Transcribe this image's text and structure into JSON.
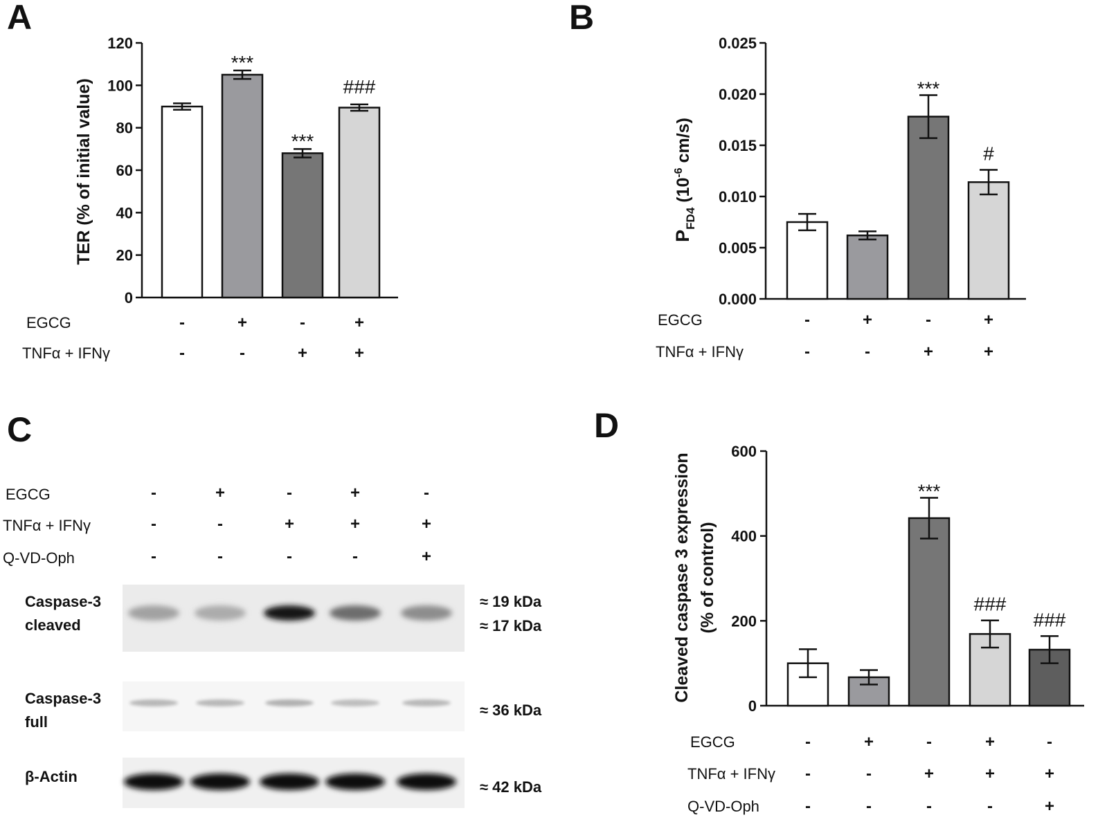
{
  "panels": {
    "A": {
      "letter": "A"
    },
    "B": {
      "letter": "B"
    },
    "C": {
      "letter": "C"
    },
    "D": {
      "letter": "D"
    }
  },
  "chart_data": [
    {
      "panel": "A",
      "type": "bar",
      "ylabel": "TER (% of initial value)",
      "ylim": [
        0,
        120
      ],
      "yticks": [
        "0",
        "20",
        "40",
        "60",
        "80",
        "100",
        "120"
      ],
      "values": [
        90,
        105,
        68,
        89.5
      ],
      "errors": [
        1.5,
        2,
        2,
        1.5
      ],
      "fills": [
        "#ffffff",
        "#9a9a9e",
        "#767676",
        "#d6d6d6"
      ],
      "significance": [
        "",
        "***",
        "***",
        "###"
      ],
      "conditions": [
        {
          "label": "EGCG",
          "signs": [
            "-",
            "+",
            "-",
            "+"
          ]
        },
        {
          "label": "TNFα + IFNγ",
          "signs": [
            "-",
            "-",
            "+",
            "+"
          ]
        }
      ]
    },
    {
      "panel": "B",
      "type": "bar",
      "ylabel_main": "P",
      "ylabel_sub": "FD4",
      "ylabel_unit_a": "(10",
      "ylabel_unit_sup": "-6",
      "ylabel_unit_b": " cm/s)",
      "ylim": [
        0,
        0.025
      ],
      "yticks": [
        "0.000",
        "0.005",
        "0.010",
        "0.015",
        "0.020",
        "0.025"
      ],
      "values": [
        0.0075,
        0.0062,
        0.0178,
        0.0114
      ],
      "errors": [
        0.0008,
        0.0004,
        0.0021,
        0.0012
      ],
      "fills": [
        "#ffffff",
        "#9a9a9e",
        "#767676",
        "#d6d6d6"
      ],
      "significance": [
        "",
        "",
        "***",
        "#"
      ],
      "conditions": [
        {
          "label": "EGCG",
          "signs": [
            "-",
            "+",
            "-",
            "+"
          ]
        },
        {
          "label": "TNFα + IFNγ",
          "signs": [
            "-",
            "-",
            "+",
            "+"
          ]
        }
      ]
    },
    {
      "panel": "D",
      "type": "bar",
      "ylabel_line1": "Cleaved caspase 3 expression",
      "ylabel_line2": "(% of control)",
      "ylim": [
        0,
        600
      ],
      "yticks": [
        "0",
        "200",
        "400",
        "600"
      ],
      "values": [
        100,
        67,
        442,
        169,
        132
      ],
      "errors": [
        33,
        17,
        48,
        32,
        32
      ],
      "fills": [
        "#ffffff",
        "#9a9a9e",
        "#767676",
        "#d6d6d6",
        "#5e5e5e"
      ],
      "significance": [
        "",
        "",
        "***",
        "###",
        "###"
      ],
      "conditions": [
        {
          "label": "EGCG",
          "signs": [
            "-",
            "+",
            "-",
            "+",
            "-"
          ]
        },
        {
          "label": "TNFα + IFNγ",
          "signs": [
            "-",
            "-",
            "+",
            "+",
            "+"
          ]
        },
        {
          "label": "Q-VD-Oph",
          "signs": [
            "-",
            "-",
            "-",
            "-",
            "+"
          ]
        }
      ]
    }
  ],
  "western_blot": {
    "conditions": [
      {
        "label": "EGCG",
        "signs": [
          "-",
          "+",
          "-",
          "+",
          "-"
        ]
      },
      {
        "label": "TNFα + IFNγ",
        "signs": [
          "-",
          "-",
          "+",
          "+",
          "+"
        ]
      },
      {
        "label": "Q-VD-Oph",
        "signs": [
          "-",
          "-",
          "-",
          "-",
          "+"
        ]
      }
    ],
    "blots": [
      {
        "label_line1": "Caspase-3",
        "label_line2": "cleaved",
        "kda": [
          "≈ 19 kDa",
          "≈ 17 kDa"
        ],
        "intensity": [
          0.35,
          0.3,
          1.0,
          0.6,
          0.45
        ]
      },
      {
        "label_line1": "Caspase-3",
        "label_line2": "full",
        "kda": [
          "≈ 36 kDa"
        ],
        "intensity": [
          0.25,
          0.25,
          0.28,
          0.22,
          0.25
        ]
      },
      {
        "label_line1": "β-Actin",
        "label_line2": "",
        "kda": [
          "≈ 42 kDa"
        ],
        "intensity": [
          1,
          1,
          1,
          1,
          1
        ]
      }
    ]
  }
}
